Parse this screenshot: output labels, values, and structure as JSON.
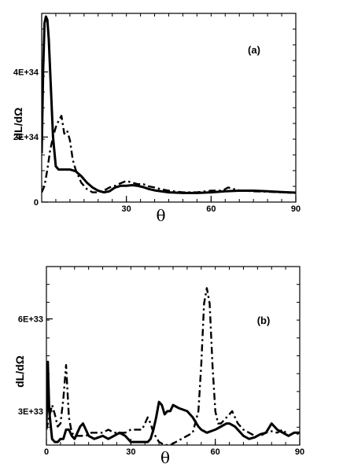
{
  "chart_data": [
    {
      "type": "line",
      "panel_label": "(a)",
      "xlabel": "θ",
      "ylabel": "dL/dΩ",
      "xlim": [
        0,
        90
      ],
      "ylim": [
        0,
        5.8e+34
      ],
      "x_ticks": [
        30,
        60,
        90
      ],
      "y_ticks": [
        0,
        2e+34,
        4e+34
      ],
      "x_tick_labels": [
        "30",
        "60",
        "90"
      ],
      "y_tick_labels": [
        "0",
        "2E+34",
        "4E+34"
      ],
      "grid": false,
      "legend": "none",
      "series": [
        {
          "style": "solid",
          "x": [
            0,
            0.5,
            1,
            1.5,
            2,
            2.5,
            3,
            3.5,
            4,
            5,
            6,
            7,
            8,
            10,
            12,
            14,
            16,
            18,
            20,
            22,
            24,
            26,
            28,
            30,
            32,
            34,
            36,
            38,
            40,
            45,
            50,
            55,
            60,
            65,
            70,
            75,
            80,
            85,
            90
          ],
          "y": [
            1.5e+34,
            4e+34,
            5.5e+34,
            5.7e+34,
            5.6e+34,
            5e+34,
            4e+34,
            3e+34,
            2e+34,
            1.1e+34,
            1e+34,
            1e+34,
            1e+34,
            1e+34,
            9.5e+33,
            8e+33,
            6e+33,
            4.5e+33,
            3.5e+33,
            3e+33,
            3.3e+33,
            4.5e+33,
            5e+33,
            5e+33,
            5.2e+33,
            5e+33,
            4.6e+33,
            4e+33,
            3.6e+33,
            3e+33,
            2.8e+33,
            2.8e+33,
            3e+33,
            3.3e+33,
            3.5e+33,
            3.5e+33,
            3.3e+33,
            3.1e+33,
            2.9e+33
          ]
        },
        {
          "style": "dash-dot",
          "x": [
            0,
            1,
            2,
            3,
            4,
            5,
            6,
            7,
            8,
            9,
            10,
            11,
            12,
            13,
            14,
            16,
            18,
            20,
            22,
            24,
            26,
            28,
            30,
            32,
            34,
            36,
            38,
            40,
            42,
            45,
            50,
            55,
            60,
            64,
            66,
            68,
            70,
            75,
            80,
            85,
            90
          ],
          "y": [
            3e+33,
            5e+33,
            1e+34,
            1.6e+34,
            2e+34,
            2.3e+34,
            2.5e+34,
            2.65e+34,
            2.1e+34,
            2.2e+34,
            1.9e+34,
            1.3e+34,
            1e+34,
            8e+33,
            6e+33,
            4e+33,
            3e+33,
            3e+33,
            3.5e+33,
            4.5e+33,
            5e+33,
            5.8e+33,
            6.5e+33,
            6e+33,
            5.5e+33,
            5.5e+33,
            4.8e+33,
            4.5e+33,
            4e+33,
            3.5e+33,
            3e+33,
            3e+33,
            3.5e+33,
            3.5e+33,
            4.5e+33,
            4e+33,
            3.6e+33,
            3.3e+33,
            3.2e+33,
            3e+33,
            2.8e+33
          ]
        }
      ]
    },
    {
      "type": "line",
      "panel_label": "(b)",
      "xlabel": "θ",
      "ylabel": "dL/dΩ",
      "xlim": [
        0,
        90
      ],
      "ylim": [
        1.9e+33,
        7.7e+33
      ],
      "x_ticks": [
        0,
        30,
        60,
        90
      ],
      "y_ticks": [
        3e+33,
        6e+33
      ],
      "x_tick_labels": [
        "0",
        "30",
        "60",
        "90"
      ],
      "y_tick_labels": [
        "3E+33",
        "6E+33"
      ],
      "grid": false,
      "legend": "none",
      "series": [
        {
          "style": "solid",
          "x": [
            0,
            0.5,
            1,
            2,
            3,
            4,
            5,
            6,
            7,
            8,
            9,
            10,
            11,
            12,
            13,
            14,
            15,
            17,
            20,
            22,
            24,
            26,
            28,
            30,
            32,
            34,
            36,
            37,
            38,
            39,
            40,
            41,
            42,
            43,
            44,
            45,
            47,
            50,
            52,
            54,
            55,
            57,
            60,
            62,
            64,
            65,
            67,
            70,
            72,
            74,
            76,
            78,
            80,
            82,
            84,
            86,
            88,
            90
          ],
          "y": [
            2.5e+33,
            4.6e+33,
            3e+33,
            2.1e+33,
            2e+33,
            2e+33,
            2.1e+33,
            2.1e+33,
            2.4e+33,
            2.4e+33,
            2.2e+33,
            2.1e+33,
            2.3e+33,
            2.5e+33,
            2.6e+33,
            2.4e+33,
            2.2e+33,
            2.1e+33,
            2.2e+33,
            2.1e+33,
            2.2e+33,
            2.3e+33,
            2.2e+33,
            2e+33,
            2e+33,
            2e+33,
            2e+33,
            2.1e+33,
            2.4e+33,
            2.8e+33,
            3.3e+33,
            3.2e+33,
            2.9e+33,
            3e+33,
            3e+33,
            3.2e+33,
            3.1e+33,
            3e+33,
            2.8e+33,
            2.5e+33,
            2.4e+33,
            2.3e+33,
            2.4e+33,
            2.5e+33,
            2.6e+33,
            2.6e+33,
            2.5e+33,
            2.2e+33,
            2.1e+33,
            2.15e+33,
            2.25e+33,
            2.3e+33,
            2.6e+33,
            2.4e+33,
            2.3e+33,
            2.2e+33,
            2.3e+33,
            2.3e+33
          ]
        },
        {
          "style": "dash-dot",
          "x": [
            0,
            1,
            2,
            3,
            4,
            5,
            6,
            7,
            8,
            9,
            10,
            12,
            14,
            16,
            18,
            20,
            22,
            24,
            26,
            28,
            30,
            32,
            34,
            35,
            36,
            37,
            38,
            40,
            42,
            44,
            46,
            48,
            50,
            52,
            54,
            55,
            56,
            57,
            58,
            59,
            60,
            61,
            62,
            63,
            64,
            65,
            66,
            67,
            68,
            70,
            72,
            74,
            76,
            78,
            80,
            82,
            84,
            86,
            88,
            90
          ],
          "y": [
            2.4e+33,
            2.8e+33,
            3.2e+33,
            2.9e+33,
            2.5e+33,
            2.6e+33,
            3.4e+33,
            4.5e+33,
            2.8e+33,
            2.3e+33,
            2.2e+33,
            2.2e+33,
            2.2e+33,
            2.3e+33,
            2.3e+33,
            2.3e+33,
            2.4e+33,
            2.3e+33,
            2.3e+33,
            2.3e+33,
            2.4e+33,
            2.4e+33,
            2.4e+33,
            2.6e+33,
            2.8e+33,
            2.6e+33,
            2.3e+33,
            2e+33,
            1.9e+33,
            1.9e+33,
            2e+33,
            2.1e+33,
            2.2e+33,
            2.3e+33,
            3e+33,
            4.5e+33,
            6.5e+33,
            7e+33,
            6.5e+33,
            4.5e+33,
            3e+33,
            2.6e+33,
            2.6e+33,
            2.7e+33,
            2.8e+33,
            2.9e+33,
            3e+33,
            2.8e+33,
            2.6e+33,
            2.4e+33,
            2.3e+33,
            2.2e+33,
            2.2e+33,
            2.3e+33,
            2.35e+33,
            2.3e+33,
            2.4e+33,
            2.2e+33,
            2.3e+33,
            2.25e+33
          ]
        }
      ]
    }
  ]
}
